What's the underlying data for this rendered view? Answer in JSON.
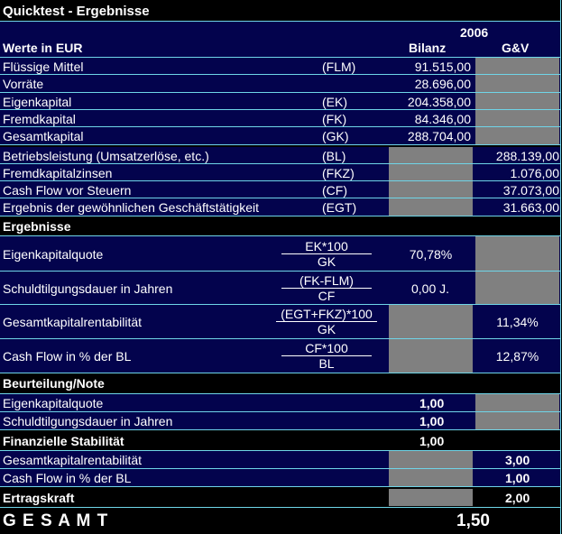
{
  "title": "Quicktest - Ergebnisse",
  "header": {
    "year": "2006",
    "values_label": "Werte in EUR",
    "col_bilanz": "Bilanz",
    "col_guv": "G&V"
  },
  "bilanz_rows": [
    {
      "label": "Flüssige Mittel",
      "abbr": "(FLM)",
      "bilanz": "91.515,00"
    },
    {
      "label": "Vorräte",
      "abbr": "",
      "bilanz": "28.696,00"
    },
    {
      "label": "Eigenkapital",
      "abbr": "(EK)",
      "bilanz": "204.358,00"
    },
    {
      "label": "Fremdkapital",
      "abbr": "(FK)",
      "bilanz": "84.346,00"
    },
    {
      "label": "Gesamtkapital",
      "abbr": "(GK)",
      "bilanz": "288.704,00"
    }
  ],
  "guv_rows": [
    {
      "label": "Betriebsleistung (Umsatzerlöse, etc.)",
      "abbr": "(BL)",
      "guv": "288.139,00"
    },
    {
      "label": "Fremdkapitalzinsen",
      "abbr": "(FKZ)",
      "guv": "1.076,00"
    },
    {
      "label": "Cash Flow vor Steuern",
      "abbr": "(CF)",
      "guv": "37.073,00"
    },
    {
      "label": "Ergebnis der gewöhnlichen Geschäftstätigkeit",
      "abbr": "(EGT)",
      "guv": "31.663,00"
    }
  ],
  "ergebnisse": {
    "heading": "Ergebnisse",
    "rows": [
      {
        "label": "Eigenkapitalquote",
        "num": "EK*100",
        "den": "GK",
        "bilanz": "70,78%",
        "guv": ""
      },
      {
        "label": "Schuldtilgungsdauer in Jahren",
        "num": "(FK-FLM)",
        "den": "CF",
        "bilanz": "0,00 J.",
        "guv": ""
      },
      {
        "label": "Gesamtkapitalrentabilität",
        "num": "(EGT+FKZ)*100",
        "den": "GK",
        "bilanz": "",
        "guv": "11,34%"
      },
      {
        "label": "Cash Flow in % der BL",
        "num": "CF*100",
        "den": "BL",
        "bilanz": "",
        "guv": "12,87%"
      }
    ]
  },
  "beurteilung": {
    "heading": "Beurteilung/Note",
    "rows": [
      {
        "label": "Eigenkapitalquote",
        "bilanz": "1,00"
      },
      {
        "label": "Schuldtilgungsdauer in Jahren",
        "bilanz": "1,00"
      },
      {
        "label": "Finanzielle Stabilität",
        "bilanz": "1,00"
      },
      {
        "label": "Gesamtkapitalrentabilität",
        "guv": "3,00"
      },
      {
        "label": "Cash Flow in % der BL",
        "guv": "1,00"
      },
      {
        "label": "Ertragskraft",
        "guv": "2,00"
      }
    ]
  },
  "gesamt": {
    "label": "G E S A M T",
    "value": "1,50"
  },
  "colors": {
    "row_bg": "#03034d",
    "grid_line": "#6fd5e8",
    "grey_cell": "#808080",
    "section_bg": "#000000"
  }
}
